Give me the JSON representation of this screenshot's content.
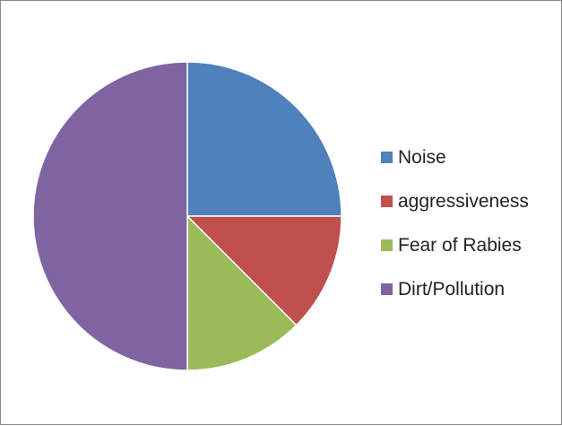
{
  "chart_data": {
    "type": "pie",
    "categories": [
      "Noise",
      "aggressiveness",
      "Fear of Rabies",
      "Dirt/Pollution"
    ],
    "values": [
      25,
      12.5,
      12.5,
      50
    ],
    "colors": [
      "#4f81bd",
      "#c0504d",
      "#9bbb59",
      "#8064a2"
    ],
    "start_angle_deg": 0,
    "direction": "clockwise",
    "legend_position": "right",
    "title": ""
  },
  "legend": {
    "items": [
      {
        "label": "Noise",
        "color": "#4f81bd"
      },
      {
        "label": "aggressiveness",
        "color": "#c0504d"
      },
      {
        "label": "Fear of Rabies",
        "color": "#9bbb59"
      },
      {
        "label": "Dirt/Pollution",
        "color": "#8064a2"
      }
    ]
  }
}
